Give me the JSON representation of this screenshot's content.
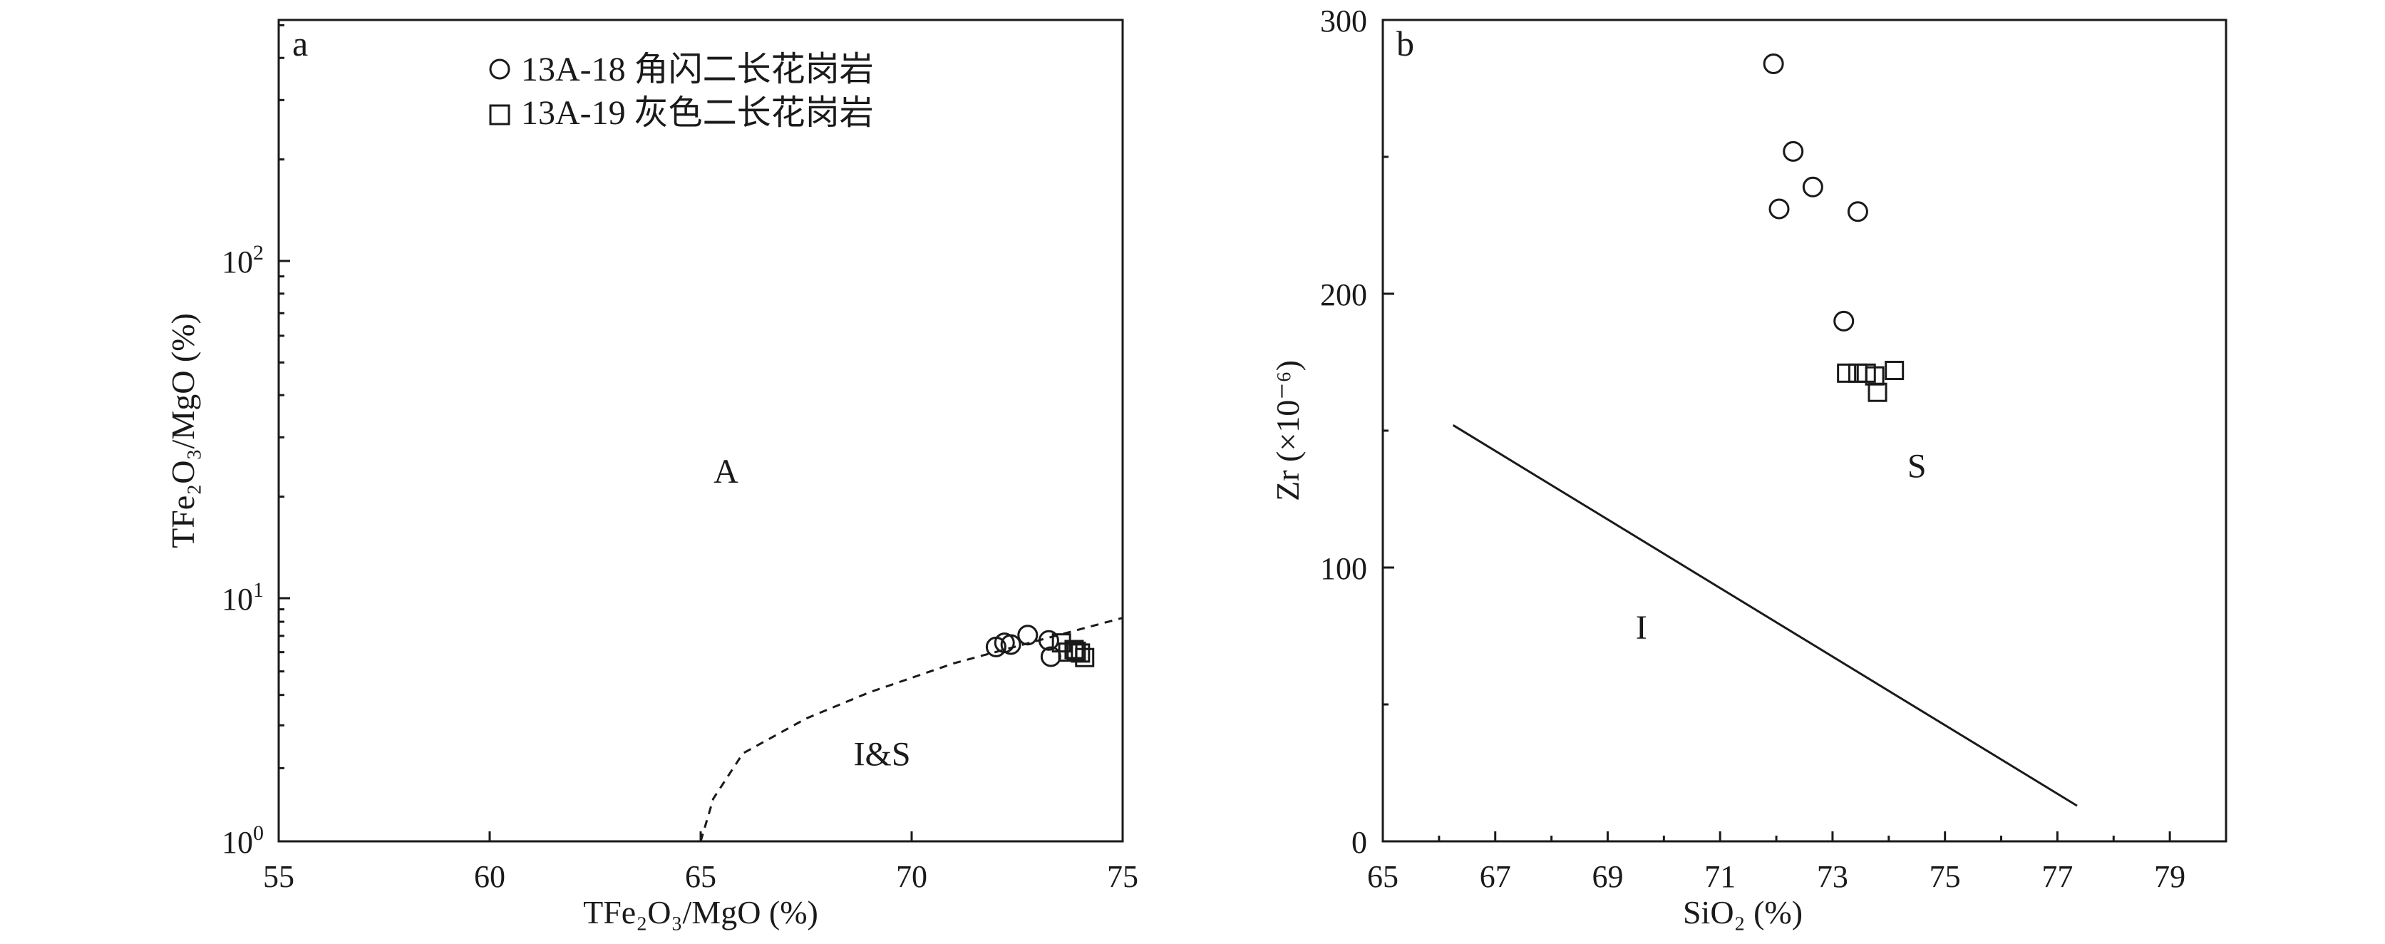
{
  "chart_data": [
    {
      "panel": "a",
      "type": "scatter",
      "xlabel": "TFe₂O₃/MgO (%)",
      "ylabel": "TFe₂O₃/MgO (%)",
      "xlim": [
        55,
        75
      ],
      "ylim": [
        1,
        500
      ],
      "yscale": "log",
      "xticks": [
        "55",
        "60",
        "65",
        "70",
        "75"
      ],
      "yticks": [
        {
          "value": 1,
          "base": "10",
          "exp": "0"
        },
        {
          "value": 10,
          "base": "10",
          "exp": "1"
        },
        {
          "value": 100,
          "base": "10",
          "exp": "2"
        }
      ],
      "legend_position": "top-left",
      "series": [
        {
          "name": "13A-18 角闪二长花岗岩",
          "marker": "circle",
          "points": [
            [
              72.0,
              6.3
            ],
            [
              72.2,
              6.55
            ],
            [
              72.35,
              6.45
            ],
            [
              72.75,
              7.05
            ],
            [
              73.25,
              6.7
            ],
            [
              73.3,
              5.75
            ]
          ]
        },
        {
          "name": "13A-19 灰色二长花岗岩",
          "marker": "square",
          "points": [
            [
              73.55,
              6.55
            ],
            [
              73.7,
              6.0
            ],
            [
              73.85,
              6.15
            ],
            [
              73.9,
              6.05
            ],
            [
              74.0,
              5.95
            ],
            [
              74.1,
              5.7
            ]
          ]
        }
      ],
      "boundary": {
        "style": "dashed",
        "points": [
          [
            65.0,
            1.0
          ],
          [
            65.3,
            1.5
          ],
          [
            66.0,
            2.3
          ],
          [
            67.5,
            3.2
          ],
          [
            69.0,
            4.1
          ],
          [
            71.0,
            5.4
          ],
          [
            73.0,
            6.7
          ],
          [
            75.0,
            8.3
          ]
        ]
      },
      "regions": [
        {
          "label": "A",
          "x": 65.6,
          "y": 22
        },
        {
          "label": "I&S",
          "x": 69.3,
          "y": 2.05
        }
      ]
    },
    {
      "panel": "b",
      "type": "scatter",
      "xlabel": "SiO₂ (%)",
      "ylabel": "Zr (×10⁻⁶)",
      "xlim": [
        65,
        80
      ],
      "ylim": [
        0,
        300
      ],
      "xticks": [
        "65",
        "67",
        "69",
        "71",
        "73",
        "75",
        "77",
        "79"
      ],
      "yticks": [
        "0",
        "100",
        "200",
        "300"
      ],
      "series": [
        {
          "name": "13A-18 角闪二长花岗岩",
          "marker": "circle",
          "points": [
            [
              71.95,
              284
            ],
            [
              72.3,
              252
            ],
            [
              72.65,
              239
            ],
            [
              72.05,
              231
            ],
            [
              73.45,
              230
            ],
            [
              73.2,
              190
            ]
          ]
        },
        {
          "name": "13A-19 灰色二长花岗岩",
          "marker": "square",
          "points": [
            [
              73.25,
              171
            ],
            [
              73.45,
              171
            ],
            [
              73.6,
              171
            ],
            [
              73.75,
              170
            ],
            [
              73.8,
              164
            ],
            [
              74.1,
              172
            ]
          ]
        }
      ],
      "boundary": {
        "style": "solid",
        "points": [
          [
            66.25,
            152
          ],
          [
            77.35,
            13
          ]
        ]
      },
      "regions": [
        {
          "label": "I",
          "x": 69.6,
          "y": 74
        },
        {
          "label": "S",
          "x": 74.5,
          "y": 133
        }
      ]
    }
  ]
}
